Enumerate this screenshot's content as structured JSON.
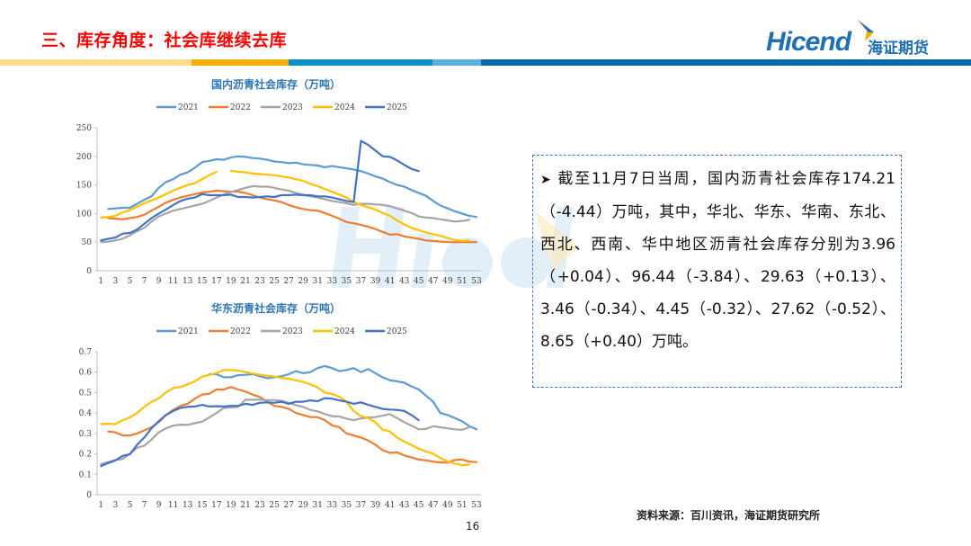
{
  "header": {
    "title": "三、库存角度：社会库继续去库",
    "logo_en": "Hicend",
    "logo_cn": "海证期货",
    "bar_colors": [
      "#fbdc8a",
      "#f5b000",
      "#0a8fc9",
      "#5aafdf",
      "#0a69a8"
    ]
  },
  "watermark": {
    "en": "Hicend",
    "cn": "海证期货"
  },
  "text_box": {
    "bullet_icon": "arrow-bullet",
    "text": "截至11月7日当周，国内沥青社会库存174.21（-4.44）万吨，其中，华北、华东、华南、东北、西北、西南、华中地区沥青社会库存分别为3.96（+0.04）、96.44（-3.84）、29.63（+0.13）、3.46（-0.34）、4.45（-0.32）、27.62（-0.52）、8.65（+0.40）万吨。"
  },
  "footer": {
    "source": "资料来源：百川资讯，海证期货研究所",
    "page_number": "16"
  },
  "chart_data": [
    {
      "type": "line",
      "title": "国内沥青社会库存（万吨）",
      "xlabel": "",
      "ylabel": "",
      "x": [
        1,
        2,
        3,
        4,
        5,
        6,
        7,
        8,
        9,
        10,
        11,
        12,
        13,
        14,
        15,
        16,
        17,
        18,
        19,
        20,
        21,
        22,
        23,
        24,
        25,
        26,
        27,
        28,
        29,
        30,
        31,
        32,
        33,
        34,
        35,
        36,
        37,
        38,
        39,
        40,
        41,
        42,
        43,
        44,
        45,
        46,
        47,
        48,
        49,
        50,
        51,
        52,
        53
      ],
      "x_ticks": [
        "1",
        "3",
        "5",
        "7",
        "9",
        "11",
        "13",
        "15",
        "17",
        "19",
        "21",
        "23",
        "25",
        "27",
        "29",
        "31",
        "33",
        "35",
        "37",
        "39",
        "41",
        "43",
        "45",
        "47",
        "49",
        "51",
        "53"
      ],
      "ylim": [
        0,
        250
      ],
      "y_ticks": [
        "0",
        "50",
        "100",
        "150",
        "200",
        "250"
      ],
      "legend_position": "top",
      "grid": false,
      "series": [
        {
          "name": "2021",
          "color": "#5b9bd5",
          "values": [
            null,
            108,
            109,
            110,
            110,
            117,
            124,
            130,
            145,
            155,
            160,
            168,
            172,
            180,
            190,
            192,
            195,
            194,
            198,
            200,
            199,
            197,
            196,
            194,
            191,
            190,
            188,
            189,
            186,
            185,
            184,
            181,
            183,
            181,
            179,
            177,
            174,
            170,
            165,
            161,
            155,
            150,
            147,
            141,
            136,
            131,
            122,
            114,
            109,
            104,
            100,
            96,
            94
          ]
        },
        {
          "name": "2022",
          "color": "#ed7d31",
          "values": [
            null,
            92,
            91,
            90,
            92,
            94,
            98,
            105,
            112,
            119,
            124,
            128,
            131,
            134,
            137,
            138,
            140,
            139,
            138,
            138,
            136,
            132,
            128,
            125,
            123,
            120,
            115,
            111,
            108,
            106,
            105,
            101,
            96,
            91,
            85,
            83,
            80,
            77,
            73,
            68,
            63,
            64,
            60,
            58,
            56,
            53,
            52,
            51,
            50,
            50,
            50,
            50,
            50
          ]
        },
        {
          "name": "2023",
          "color": "#a5a5a5",
          "values": [
            50,
            51,
            53,
            56,
            62,
            69,
            75,
            86,
            95,
            100,
            105,
            108,
            111,
            114,
            117,
            122,
            128,
            133,
            138,
            141,
            145,
            148,
            147,
            147,
            145,
            142,
            140,
            136,
            133,
            130,
            128,
            125,
            122,
            120,
            118,
            115,
            117,
            117,
            116,
            115,
            113,
            109,
            105,
            101,
            95,
            93,
            92,
            90,
            88,
            86,
            87,
            89,
            null
          ]
        },
        {
          "name": "2024",
          "color": "#ffc000",
          "values": [
            93,
            94,
            96,
            102,
            106,
            112,
            118,
            123,
            128,
            134,
            140,
            145,
            150,
            153,
            160,
            167,
            173,
            null,
            175,
            173,
            172,
            170,
            169,
            168,
            167,
            165,
            163,
            160,
            157,
            152,
            148,
            143,
            138,
            133,
            128,
            120,
            115,
            111,
            107,
            101,
            96,
            88,
            81,
            75,
            71,
            67,
            64,
            61,
            57,
            54,
            52,
            53,
            null
          ]
        },
        {
          "name": "2025",
          "color": "#4472c4",
          "values": [
            53,
            56,
            58,
            65,
            66,
            72,
            82,
            92,
            100,
            107,
            115,
            122,
            126,
            128,
            134,
            132,
            132,
            132,
            133,
            129,
            129,
            128,
            129,
            130,
            129,
            132,
            132,
            133,
            132,
            132,
            130,
            130,
            128,
            125,
            122,
            120,
            227,
            220,
            210,
            200,
            199,
            193,
            185,
            178,
            174.21,
            null,
            null,
            null,
            null,
            null,
            null,
            null,
            null
          ]
        }
      ]
    },
    {
      "type": "line",
      "title": "华东沥青社会库存（万吨）",
      "xlabel": "",
      "ylabel": "",
      "x": [
        1,
        2,
        3,
        4,
        5,
        6,
        7,
        8,
        9,
        10,
        11,
        12,
        13,
        14,
        15,
        16,
        17,
        18,
        19,
        20,
        21,
        22,
        23,
        24,
        25,
        26,
        27,
        28,
        29,
        30,
        31,
        32,
        33,
        34,
        35,
        36,
        37,
        38,
        39,
        40,
        41,
        42,
        43,
        44,
        45,
        46,
        47,
        48,
        49,
        50,
        51,
        52,
        53
      ],
      "x_ticks": [
        "1",
        "3",
        "5",
        "7",
        "9",
        "11",
        "13",
        "15",
        "17",
        "19",
        "21",
        "23",
        "25",
        "27",
        "29",
        "31",
        "33",
        "35",
        "37",
        "39",
        "41",
        "43",
        "45",
        "47",
        "49",
        "51",
        "53"
      ],
      "ylim": [
        0,
        0.7
      ],
      "y_ticks": [
        "0",
        "0.1",
        "0.2",
        "0.3",
        "0.4",
        "0.5",
        "0.6",
        "0.7"
      ],
      "legend_position": "top",
      "grid": false,
      "series": [
        {
          "name": "2021",
          "color": "#5b9bd5",
          "values": [
            null,
            null,
            null,
            null,
            null,
            null,
            null,
            null,
            null,
            null,
            null,
            null,
            null,
            null,
            null,
            0.59,
            0.59,
            0.575,
            0.575,
            0.585,
            0.587,
            0.59,
            0.58,
            0.57,
            0.575,
            0.58,
            0.59,
            0.605,
            0.595,
            0.6,
            0.62,
            0.63,
            0.62,
            0.605,
            0.61,
            0.62,
            0.6,
            0.615,
            0.595,
            0.575,
            0.56,
            0.555,
            0.548,
            0.53,
            0.515,
            0.485,
            0.455,
            0.4,
            0.39,
            0.375,
            0.36,
            0.335,
            0.32
          ]
        },
        {
          "name": "2022",
          "color": "#ed7d31",
          "values": [
            null,
            0.31,
            0.305,
            0.29,
            0.29,
            0.3,
            0.315,
            0.33,
            0.355,
            0.39,
            0.415,
            0.435,
            0.445,
            0.47,
            0.49,
            0.495,
            0.515,
            0.515,
            0.527,
            0.515,
            0.505,
            0.49,
            0.478,
            0.455,
            0.435,
            0.43,
            0.42,
            0.4,
            0.39,
            0.38,
            0.38,
            0.365,
            0.34,
            0.33,
            0.3,
            0.29,
            0.28,
            0.265,
            0.245,
            0.218,
            0.205,
            0.208,
            0.192,
            0.183,
            0.172,
            0.168,
            0.162,
            0.158,
            0.157,
            0.17,
            0.172,
            0.162,
            0.16
          ]
        },
        {
          "name": "2023",
          "color": "#a5a5a5",
          "values": [
            0.15,
            0.16,
            0.17,
            0.175,
            0.2,
            0.23,
            0.24,
            0.27,
            0.305,
            0.325,
            0.338,
            0.343,
            0.342,
            0.35,
            0.358,
            0.378,
            0.4,
            0.425,
            0.427,
            0.43,
            0.465,
            0.465,
            0.465,
            0.463,
            0.463,
            0.46,
            0.45,
            0.438,
            0.43,
            0.415,
            0.408,
            0.395,
            0.385,
            0.383,
            0.372,
            0.365,
            0.373,
            0.378,
            0.38,
            0.387,
            0.395,
            0.375,
            0.355,
            0.338,
            0.32,
            0.322,
            0.335,
            0.33,
            0.325,
            0.32,
            0.318,
            0.33,
            null
          ]
        },
        {
          "name": "2024",
          "color": "#ffc000",
          "values": [
            0.345,
            0.348,
            0.345,
            0.365,
            0.378,
            0.4,
            0.43,
            0.455,
            0.472,
            0.5,
            0.522,
            0.527,
            0.54,
            0.555,
            0.578,
            0.587,
            0.595,
            0.61,
            0.61,
            0.607,
            0.6,
            0.593,
            0.587,
            0.583,
            0.578,
            0.572,
            0.568,
            0.56,
            0.552,
            0.54,
            0.525,
            0.5,
            0.493,
            0.48,
            0.455,
            0.41,
            0.385,
            0.375,
            0.355,
            0.318,
            0.31,
            0.28,
            0.26,
            0.243,
            0.225,
            0.212,
            0.2,
            0.18,
            0.163,
            0.152,
            0.145,
            0.148,
            null
          ]
        },
        {
          "name": "2025",
          "color": "#4472c4",
          "values": [
            0.14,
            0.155,
            0.168,
            0.19,
            0.198,
            0.245,
            0.28,
            0.325,
            0.36,
            0.39,
            0.41,
            0.425,
            0.43,
            0.432,
            0.44,
            0.432,
            0.433,
            0.432,
            0.435,
            0.435,
            0.445,
            0.44,
            0.45,
            0.452,
            0.45,
            0.455,
            0.445,
            0.455,
            0.455,
            0.462,
            0.458,
            0.473,
            0.47,
            0.462,
            0.455,
            0.445,
            0.452,
            0.44,
            0.43,
            0.42,
            0.417,
            0.415,
            0.41,
            0.39,
            0.365,
            null,
            null,
            null,
            null,
            null,
            null,
            null,
            null
          ]
        }
      ]
    }
  ]
}
